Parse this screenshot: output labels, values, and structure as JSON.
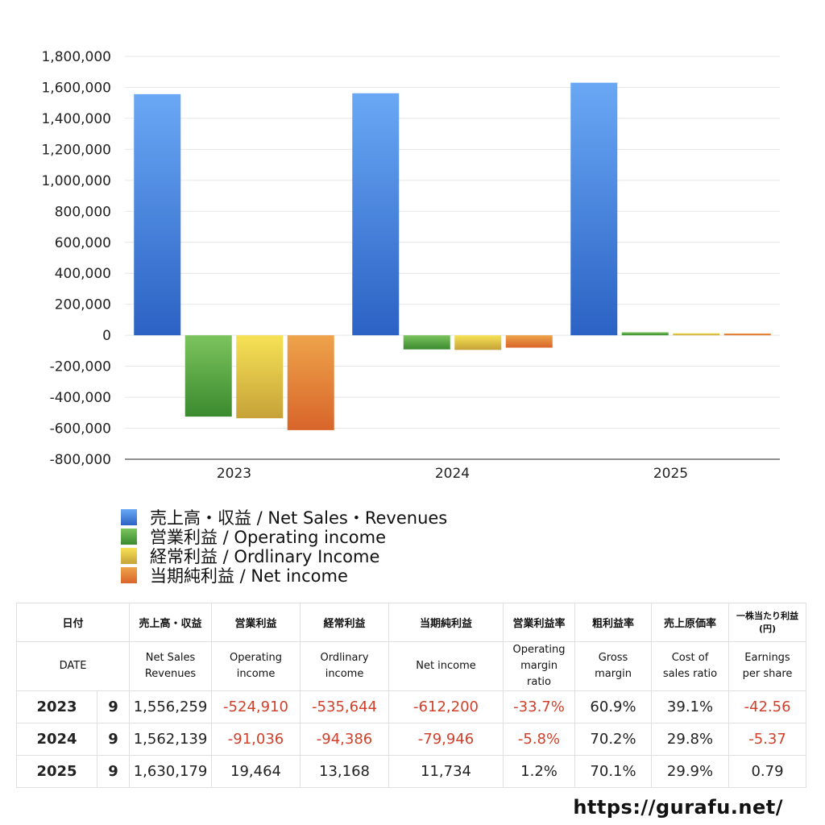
{
  "chart_data": {
    "type": "bar",
    "categories": [
      "2023",
      "2024",
      "2025"
    ],
    "ylim": [
      -800000,
      1800000
    ],
    "y_ticks": [
      "1,800,000",
      "1,600,000",
      "1,400,000",
      "1,200,000",
      "1,000,000",
      "800,000",
      "600,000",
      "400,000",
      "200,000",
      "0",
      "-200,000",
      "-400,000",
      "-600,000",
      "-800,000"
    ],
    "grid": true,
    "legend_position": "bottom-left",
    "series": [
      {
        "name": "売上高・収益 / Net Sales・Revenues",
        "values": [
          1556259,
          1562139,
          1630179
        ],
        "color": "#3a7be0"
      },
      {
        "name": "営業利益 / Operating income",
        "values": [
          -524910,
          -91036,
          19464
        ],
        "color": "#4a9a3a"
      },
      {
        "name": "経常利益 / Ordlinary Income",
        "values": [
          -535644,
          -94386,
          13168
        ],
        "color": "#d6c23a"
      },
      {
        "name": "当期純利益 / Net income",
        "values": [
          -612200,
          -79946,
          11734
        ],
        "color": "#e07a30"
      }
    ]
  },
  "table": {
    "header_jp": [
      "日付",
      "売上高・収益",
      "営業利益",
      "経常利益",
      "当期純利益",
      "営業利益率",
      "粗利益率",
      "売上原価率",
      "一株当たり利益\n(円)"
    ],
    "header_en": [
      "DATE",
      "Net Sales\nRevenues",
      "Operating\nincome",
      "Ordlinary\nincome",
      "Net income",
      "Operating\nmargin\nratio",
      "Gross\nmargin",
      "Cost of\nsales ratio",
      "Earnings\nper share"
    ],
    "rows": [
      {
        "year": "2023",
        "month": "9",
        "sales": "1,556,259",
        "op": "-524,910",
        "ord": "-535,644",
        "net": "-612,200",
        "opm": "-33.7%",
        "gm": "60.9%",
        "cos": "39.1%",
        "eps": "-42.56"
      },
      {
        "year": "2024",
        "month": "9",
        "sales": "1,562,139",
        "op": "-91,036",
        "ord": "-94,386",
        "net": "-79,946",
        "opm": "-5.8%",
        "gm": "70.2%",
        "cos": "29.8%",
        "eps": "-5.37"
      },
      {
        "year": "2025",
        "month": "9",
        "sales": "1,630,179",
        "op": "19,464",
        "ord": "13,168",
        "net": "11,734",
        "opm": "1.2%",
        "gm": "70.1%",
        "cos": "29.9%",
        "eps": "0.79"
      }
    ]
  },
  "site": "https://gurafu.net/"
}
